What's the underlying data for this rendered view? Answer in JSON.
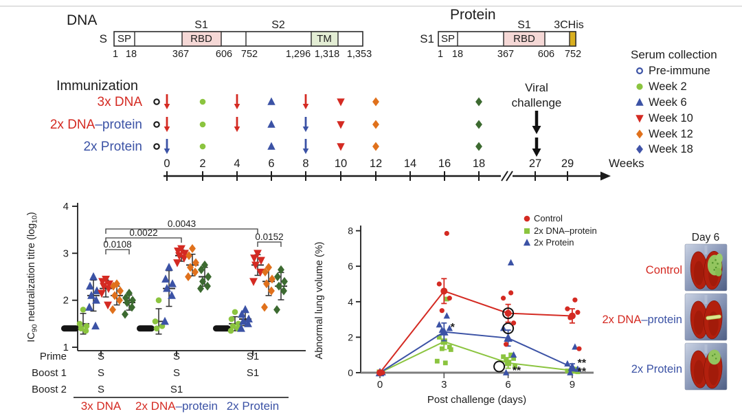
{
  "palette": {
    "red": "#d42a22",
    "blue": "#3b52a5",
    "light_green": "#8bc43f",
    "orange": "#e0711c",
    "dark_green": "#3c6a30",
    "navy_diamond": "#4053a8",
    "black": "#1c1c1c",
    "salmon": "#e4756c",
    "violet": "#8186c7",
    "pink_fill": "#f5d8d6",
    "green_fill": "#e3edd4",
    "gold": "#d9af1f"
  },
  "constructs": {
    "dna": {
      "title": "DNA",
      "chain_label": "S",
      "region_label_s1": "S1",
      "region_label_s2": "S2",
      "sp_label": "SP",
      "rbd_label": "RBD",
      "tm_label": "TM",
      "positions": [
        "1",
        "18",
        "367",
        "606",
        "752",
        "1,296",
        "1,318",
        "1,353"
      ]
    },
    "protein": {
      "title": "Protein",
      "chain_label": "S1",
      "region_label_s1": "S1",
      "tag_label": "3CHis",
      "sp_label": "SP",
      "rbd_label": "RBD",
      "positions": [
        "1",
        "18",
        "367",
        "606",
        "752"
      ]
    }
  },
  "immunization": {
    "title": "Immunization",
    "rows": [
      {
        "label_parts": [
          {
            "text": "3x DNA",
            "color": "red"
          }
        ],
        "events": [
          {
            "week": 0,
            "type": "open-circle",
            "color": "black",
            "dx": -15
          },
          {
            "week": 0,
            "type": "arrow",
            "color": "red"
          },
          {
            "week": 2,
            "type": "circle",
            "color": "light_green"
          },
          {
            "week": 4,
            "type": "arrow",
            "color": "red"
          },
          {
            "week": 6,
            "type": "triangle-up",
            "color": "blue"
          },
          {
            "week": 8,
            "type": "arrow",
            "color": "red"
          },
          {
            "week": 10,
            "type": "triangle-down",
            "color": "red"
          },
          {
            "week": 12,
            "type": "diamond",
            "color": "orange"
          },
          {
            "week": 18,
            "type": "diamond",
            "color": "dark_green"
          }
        ]
      },
      {
        "label_parts": [
          {
            "text": "2x DNA",
            "color": "red"
          },
          {
            "text": "–protein",
            "color": "blue"
          }
        ],
        "events": [
          {
            "week": 0,
            "type": "open-circle",
            "color": "black",
            "dx": -15
          },
          {
            "week": 0,
            "type": "arrow",
            "color": "red"
          },
          {
            "week": 2,
            "type": "circle",
            "color": "light_green"
          },
          {
            "week": 4,
            "type": "arrow",
            "color": "red"
          },
          {
            "week": 6,
            "type": "triangle-up",
            "color": "blue"
          },
          {
            "week": 8,
            "type": "arrow",
            "color": "blue"
          },
          {
            "week": 10,
            "type": "triangle-down",
            "color": "red"
          },
          {
            "week": 12,
            "type": "diamond",
            "color": "orange"
          },
          {
            "week": 18,
            "type": "diamond",
            "color": "dark_green"
          }
        ]
      },
      {
        "label_parts": [
          {
            "text": "2x Protein",
            "color": "blue"
          }
        ],
        "events": [
          {
            "week": 0,
            "type": "open-circle",
            "color": "black",
            "dx": -15
          },
          {
            "week": 0,
            "type": "arrow",
            "color": "blue"
          },
          {
            "week": 2,
            "type": "circle",
            "color": "light_green"
          },
          {
            "week": 6,
            "type": "triangle-up",
            "color": "blue"
          },
          {
            "week": 8,
            "type": "arrow",
            "color": "blue"
          },
          {
            "week": 10,
            "type": "triangle-down",
            "color": "red"
          },
          {
            "week": 12,
            "type": "diamond",
            "color": "orange"
          },
          {
            "week": 18,
            "type": "diamond",
            "color": "dark_green"
          }
        ]
      }
    ],
    "axis": {
      "week_labels": [
        "0",
        "2",
        "4",
        "6",
        "8",
        "10",
        "12",
        "14",
        "16",
        "18",
        "27",
        "29"
      ],
      "unit_label": "Weeks"
    },
    "viral_challenge": {
      "line1": "Viral",
      "line2": "challenge",
      "week": 27
    }
  },
  "serum_legend": {
    "title": "Serum collection",
    "items": [
      {
        "label": "Pre-immune",
        "marker": "open-circle",
        "color": "blue"
      },
      {
        "label": "Week 2",
        "marker": "circle",
        "color": "light_green"
      },
      {
        "label": "Week 6",
        "marker": "triangle-up",
        "color": "blue"
      },
      {
        "label": "Week 10",
        "marker": "triangle-down",
        "color": "red"
      },
      {
        "label": "Week 12",
        "marker": "diamond",
        "color": "orange"
      },
      {
        "label": "Week 18",
        "marker": "diamond",
        "color": "navy_diamond"
      }
    ]
  },
  "chart_data": [
    {
      "type": "scatter",
      "title": "",
      "ylabel": "IC90 neutralization titre (log10)",
      "ylabel_parts": {
        "p1": "IC",
        "sub1": "90",
        "p2": " neutralization titre (log",
        "sub2": "10",
        "p3": ")"
      },
      "yticks": [
        "1",
        "2",
        "3",
        "4"
      ],
      "ylim": [
        1,
        4
      ],
      "groups": [
        {
          "name": "3x DNA",
          "columns": [
            {
              "serum": "Pre-immune",
              "marker": "open-circle",
              "color": "black",
              "blob": true,
              "values": [
                1.4,
                1.4,
                1.4,
                1.4,
                1.4,
                1.4
              ]
            },
            {
              "serum": "Week 2",
              "marker": "circle",
              "color": "light_green",
              "values": [
                1.8,
                1.5,
                1.45,
                1.4,
                1.35
              ],
              "mean": 1.5,
              "sd": 0.22
            },
            {
              "serum": "Week 6",
              "marker": "triangle-up",
              "color": "blue",
              "values": [
                2.5,
                2.3,
                2.2,
                2.1,
                2.0,
                1.85,
                1.45
              ],
              "mean": 2.1,
              "sd": 0.33
            },
            {
              "serum": "Week 10",
              "marker": "triangle-down",
              "color": "red",
              "values": [
                2.45,
                2.4,
                2.35,
                2.3,
                2.25,
                2.15,
                1.9
              ],
              "mean": 2.25,
              "sd": 0.18
            },
            {
              "serum": "Week 12",
              "marker": "diamond",
              "color": "orange",
              "values": [
                2.35,
                2.3,
                2.2,
                2.1,
                2.0,
                1.8
              ],
              "mean": 2.1,
              "sd": 0.2
            },
            {
              "serum": "Week 18",
              "marker": "diamond",
              "color": "dark_green",
              "values": [
                2.15,
                2.05,
                2.0,
                1.95,
                1.85,
                1.7
              ],
              "mean": 1.95,
              "sd": 0.16
            }
          ]
        },
        {
          "name": "2x DNA–protein",
          "columns": [
            {
              "serum": "Pre-immune",
              "marker": "open-circle",
              "color": "black",
              "blob": true,
              "values": [
                1.4,
                1.4,
                1.4,
                1.4,
                1.4,
                1.4
              ]
            },
            {
              "serum": "Week 2",
              "marker": "circle",
              "color": "light_green",
              "values": [
                2.0,
                1.55,
                1.45,
                1.4
              ],
              "mean": 1.55,
              "sd": 0.27
            },
            {
              "serum": "Week 6",
              "marker": "triangle-up",
              "color": "blue",
              "values": [
                2.7,
                2.45,
                2.35,
                2.25,
                2.1,
                1.55
              ],
              "mean": 2.25,
              "sd": 0.38
            },
            {
              "serum": "Week 10",
              "marker": "triangle-down",
              "color": "red",
              "values": [
                3.1,
                3.05,
                3.0,
                2.95,
                2.9,
                2.8
              ],
              "mean": 2.95,
              "sd": 0.12
            },
            {
              "serum": "Week 12",
              "marker": "diamond",
              "color": "orange",
              "values": [
                3.1,
                2.95,
                2.8,
                2.7,
                2.6,
                2.5
              ],
              "mean": 2.75,
              "sd": 0.23
            },
            {
              "serum": "Week 18",
              "marker": "diamond",
              "color": "dark_green",
              "values": [
                2.75,
                2.65,
                2.5,
                2.4,
                2.3,
                2.25
              ],
              "mean": 2.5,
              "sd": 0.2
            }
          ]
        },
        {
          "name": "2x Protein",
          "columns": [
            {
              "serum": "Pre-immune",
              "marker": "open-circle",
              "color": "black",
              "blob": true,
              "values": [
                1.4,
                1.4,
                1.4,
                1.4,
                1.4,
                1.4
              ]
            },
            {
              "serum": "Week 2",
              "marker": "circle",
              "color": "light_green",
              "values": [
                1.75,
                1.6,
                1.5,
                1.45,
                1.4,
                1.35
              ],
              "mean": 1.5,
              "sd": 0.15
            },
            {
              "serum": "Week 6",
              "marker": "triangle-up",
              "color": "blue",
              "values": [
                1.8,
                1.7,
                1.6,
                1.55,
                1.5,
                1.4
              ],
              "mean": 1.6,
              "sd": 0.14
            },
            {
              "serum": "Week 10",
              "marker": "triangle-down",
              "color": "red",
              "values": [
                3.0,
                2.9,
                2.85,
                2.75,
                2.6,
                2.4
              ],
              "mean": 2.75,
              "sd": 0.22
            },
            {
              "serum": "Week 12",
              "marker": "diamond",
              "color": "orange",
              "values": [
                2.7,
                2.6,
                2.45,
                2.35,
                2.2,
                1.85
              ],
              "mean": 2.4,
              "sd": 0.3
            },
            {
              "serum": "Week 18",
              "marker": "diamond",
              "color": "dark_green",
              "values": [
                2.65,
                2.5,
                2.4,
                2.3,
                2.2,
                1.8
              ],
              "mean": 2.3,
              "sd": 0.29
            }
          ]
        }
      ],
      "pvalues": [
        {
          "label": "0.0108",
          "from": {
            "group": 0,
            "col": 3
          },
          "to": {
            "group": 0,
            "col": 5
          },
          "y": 363
        },
        {
          "label": "0.0022",
          "from": {
            "group": 0,
            "col": 3
          },
          "to": {
            "group": 1,
            "col": 3
          },
          "y": 346
        },
        {
          "label": "0.0043",
          "from": {
            "group": 0,
            "col": 3
          },
          "to": {
            "group": 2,
            "col": 3
          },
          "y": 333
        },
        {
          "label": "0.0152",
          "from": {
            "group": 2,
            "col": 3
          },
          "to": {
            "group": 2,
            "col": 5
          },
          "y": 352
        }
      ],
      "dose_rows": {
        "row_labels": [
          "Prime",
          "Boost 1",
          "Boost 2"
        ],
        "values": [
          [
            {
              "text": "S",
              "color": "red"
            },
            {
              "text": "S",
              "color": "red"
            },
            {
              "text": "S1",
              "color": "blue"
            }
          ],
          [
            {
              "text": "S",
              "color": "red"
            },
            {
              "text": "S",
              "color": "red"
            },
            {
              "text": "S1",
              "color": "blue"
            }
          ],
          [
            {
              "text": "S",
              "color": "red"
            },
            {
              "text": "S1",
              "color": "blue"
            },
            null
          ]
        ]
      },
      "group_labels": [
        [
          {
            "text": "3x DNA",
            "color": "red"
          }
        ],
        [
          {
            "text": "2x DNA",
            "color": "red"
          },
          {
            "text": "–protein",
            "color": "blue"
          }
        ],
        [
          {
            "text": "2x Protein",
            "color": "blue"
          }
        ]
      ]
    },
    {
      "type": "line",
      "xlabel": "Post challenge (days)",
      "ylabel": "Abnormal lung volume (%)",
      "x": [
        0,
        3,
        6,
        9
      ],
      "xticks": [
        "0",
        "3",
        "6",
        "9"
      ],
      "yticks": [
        "0",
        "2",
        "4",
        "6",
        "8"
      ],
      "ylim": [
        0,
        8
      ],
      "legend_position": "top-right",
      "series": [
        {
          "name": "2x DNA–protein",
          "marker": "square",
          "color": "light_green",
          "means": [
            0,
            1.75,
            0.55,
            0.12
          ],
          "sd": [
            0,
            0.45,
            0.3,
            0.1
          ],
          "points": [
            [
              0
            ],
            [
              4.15,
              2.0,
              1.45,
              1.35,
              1.3,
              0.65,
              0.55
            ],
            [
              1.0,
              0.9,
              0.8,
              0.7,
              0.35
            ],
            [
              0.2,
              0.1,
              0.05
            ]
          ],
          "circled": [
            {
              "day_index": 2,
              "value": 0.35,
              "dx": -13
            }
          ]
        },
        {
          "name": "2x Protein",
          "marker": "triangle-up",
          "color": "blue",
          "means": [
            0,
            2.3,
            1.95,
            0.3
          ],
          "sd": [
            0,
            0.5,
            0.45,
            0.2
          ],
          "points": [
            [
              0
            ],
            [
              3.2,
              2.7,
              2.5,
              2.4
            ],
            [
              6.2,
              2.5,
              1.0,
              0.0
            ],
            [
              1.45,
              0.5,
              0.2,
              0.0
            ]
          ],
          "circled": [
            {
              "day_index": 2,
              "value": 2.5,
              "dx": 0
            }
          ]
        },
        {
          "name": "Control",
          "marker": "circle",
          "color": "red",
          "means": [
            0,
            4.6,
            3.35,
            3.2
          ],
          "sd": [
            0,
            0.7,
            0.5,
            0.4
          ],
          "points": [
            [
              0
            ],
            [
              7.85,
              5.0,
              4.2,
              3.5
            ],
            [
              4.5,
              4.2,
              2.8,
              1.6
            ],
            [
              4.1,
              3.6,
              3.4,
              3.1,
              1.35
            ]
          ],
          "circled": [
            {
              "day_index": 2,
              "value": 3.35,
              "dx": 0
            }
          ]
        }
      ],
      "legend_order": [
        "Control",
        "2x DNA–protein",
        "2x Protein"
      ],
      "annotations": [
        {
          "text": "*",
          "color": "blue",
          "day": 3.4,
          "value": 2.55
        },
        {
          "text": "**",
          "color": "light_green",
          "day": 6.4,
          "value": 0.12
        },
        {
          "text": "**",
          "color": "blue",
          "day": 9.45,
          "value": 0.55
        },
        {
          "text": "**",
          "color": "light_green",
          "day": 9.45,
          "value": 0.05
        }
      ]
    }
  ],
  "ct_panel": {
    "title": "Day 6",
    "rows": [
      {
        "label_parts": [
          {
            "text": "Control",
            "color": "red"
          }
        ],
        "lesion": "large"
      },
      {
        "label_parts": [
          {
            "text": "2x DNA",
            "color": "red"
          },
          {
            "text": "–protein",
            "color": "blue"
          }
        ],
        "lesion": "sliver"
      },
      {
        "label_parts": [
          {
            "text": "2x Protein",
            "color": "blue"
          }
        ],
        "lesion": "medium"
      }
    ]
  }
}
